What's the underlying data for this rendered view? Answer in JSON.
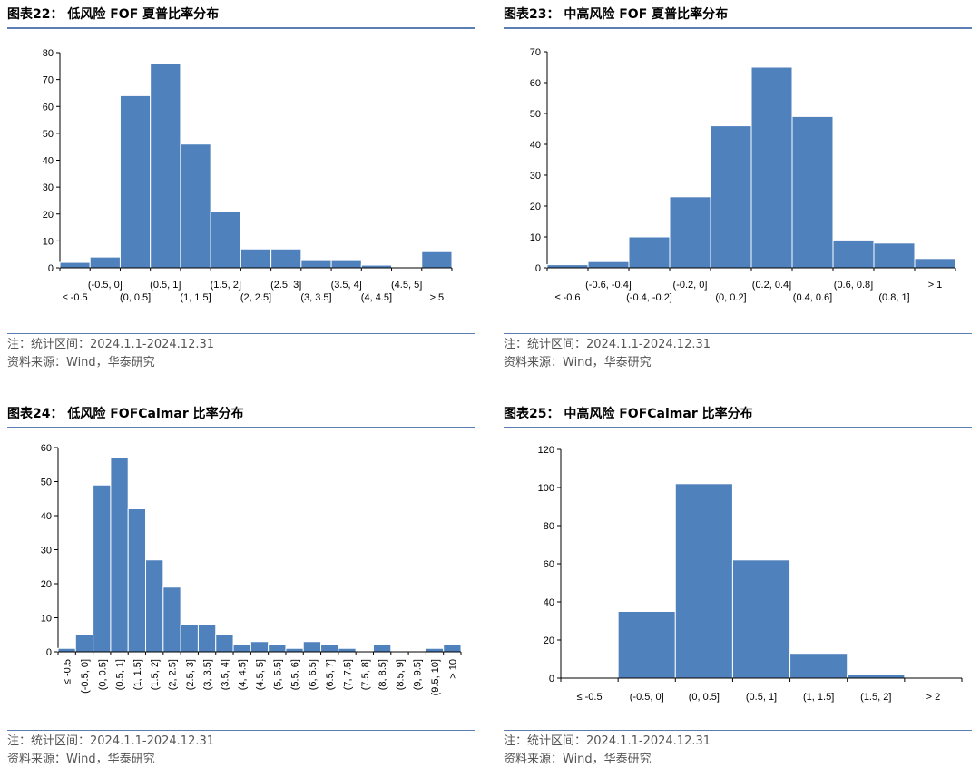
{
  "colors": {
    "bar": "#4f81bd",
    "rule": "#5b7fb2",
    "axis": "#000000"
  },
  "charts": [
    {
      "figure_title": "图表22：  低风险 FOF 夏普比率分布",
      "note": "注：统计区间：2024.1.1-2024.12.31",
      "source": "资料来源：Wind，华泰研究"
    },
    {
      "figure_title": "图表23：  中高风险 FOF 夏普比率分布",
      "note": "注：统计区间：2024.1.1-2024.12.31",
      "source": "资料来源：Wind，华泰研究"
    },
    {
      "figure_title": "图表24：  低风险 FOFCalmar 比率分布",
      "note": "注：统计区间：2024.1.1-2024.12.31",
      "source": "资料来源：Wind，华泰研究"
    },
    {
      "figure_title": "图表25：  中高风险 FOFCalmar 比率分布",
      "note": "注：统计区间：2024.1.1-2024.12.31",
      "source": "资料来源：Wind，华泰研究"
    }
  ],
  "chart_data": [
    {
      "type": "bar",
      "title": "低风险 FOF 夏普比率分布",
      "categories": [
        "≤ -0.5",
        "(-0.5, 0]",
        "(0, 0.5]",
        "(0.5, 1]",
        "(1, 1.5]",
        "(1.5, 2]",
        "(2, 2.5]",
        "(2.5, 3]",
        "(3, 3.5]",
        "(3.5, 4]",
        "(4, 4.5]",
        "(4.5, 5]",
        "> 5"
      ],
      "values": [
        2,
        4,
        64,
        76,
        46,
        21,
        7,
        7,
        3,
        3,
        1,
        0,
        6
      ],
      "ylim": [
        0,
        80
      ],
      "yticks": [
        0,
        10,
        20,
        30,
        40,
        50,
        60,
        70,
        80
      ],
      "xlabel": "",
      "ylabel": "",
      "grid": false,
      "legend": "none",
      "x_label_style": "staggered"
    },
    {
      "type": "bar",
      "title": "中高风险 FOF 夏普比率分布",
      "categories": [
        "≤ -0.6",
        "(-0.6, -0.4]",
        "(-0.4, -0.2]",
        "(-0.2, 0]",
        "(0, 0.2]",
        "(0.2, 0.4]",
        "(0.4, 0.6]",
        "(0.6, 0.8]",
        "(0.8, 1]",
        "> 1"
      ],
      "values": [
        1,
        2,
        10,
        23,
        46,
        65,
        49,
        9,
        8,
        3
      ],
      "ylim": [
        0,
        70
      ],
      "yticks": [
        0,
        10,
        20,
        30,
        40,
        50,
        60,
        70
      ],
      "xlabel": "",
      "ylabel": "",
      "grid": false,
      "legend": "none",
      "x_label_style": "staggered"
    },
    {
      "type": "bar",
      "title": "低风险 FOFCalmar 比率分布",
      "categories": [
        "≤ -0.5",
        "(-0.5, 0]",
        "(0, 0.5]",
        "(0.5, 1]",
        "(1, 1.5]",
        "(1.5, 2]",
        "(2, 2.5]",
        "(2.5, 3]",
        "(3, 3.5]",
        "(3.5, 4]",
        "(4, 4.5]",
        "(4.5, 5]",
        "(5, 5.5]",
        "(5.5, 6]",
        "(6, 6.5]",
        "(6.5, 7]",
        "(7, 7.5]",
        "(7.5, 8]",
        "(8, 8.5]",
        "(8.5, 9]",
        "(9, 9.5]",
        "(9.5, 10]",
        "> 10"
      ],
      "values": [
        1,
        5,
        49,
        57,
        42,
        27,
        19,
        8,
        8,
        5,
        2,
        3,
        2,
        1,
        3,
        2,
        1,
        0,
        2,
        0,
        0,
        1,
        2
      ],
      "ylim": [
        0,
        60
      ],
      "yticks": [
        0,
        10,
        20,
        30,
        40,
        50,
        60
      ],
      "xlabel": "",
      "ylabel": "",
      "grid": false,
      "legend": "none",
      "x_label_style": "rotated"
    },
    {
      "type": "bar",
      "title": "中高风险 FOFCalmar 比率分布",
      "categories": [
        "≤ -0.5",
        "(-0.5, 0]",
        "(0, 0.5]",
        "(0.5, 1]",
        "(1, 1.5]",
        "(1.5, 2]",
        "> 2"
      ],
      "values": [
        0,
        35,
        102,
        62,
        13,
        2,
        0
      ],
      "ylim": [
        0,
        120
      ],
      "yticks": [
        0,
        20,
        40,
        60,
        80,
        100,
        120
      ],
      "xlabel": "",
      "ylabel": "",
      "grid": false,
      "legend": "none",
      "x_label_style": "flat"
    }
  ]
}
